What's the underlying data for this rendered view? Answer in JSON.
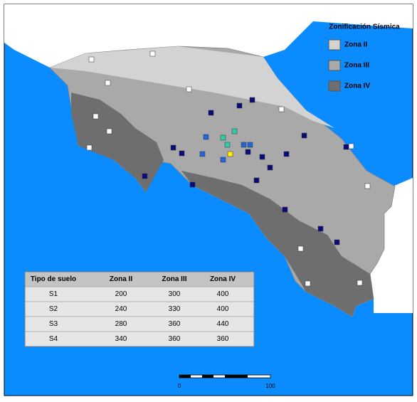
{
  "legend": {
    "title": "Zonificación Sísmica",
    "items": [
      "Zona II",
      "Zona III",
      "Zona IV"
    ]
  },
  "table": {
    "header": [
      "Tipo de suelo",
      "Zona II",
      "Zona III",
      "Zona IV"
    ],
    "rows": [
      [
        "S1",
        200,
        300,
        400
      ],
      [
        "S2",
        240,
        330,
        400
      ],
      [
        "S3",
        280,
        360,
        440
      ],
      [
        "S4",
        340,
        360,
        360
      ]
    ]
  },
  "scale_bar": {
    "labels": [
      "0",
      "100"
    ]
  }
}
